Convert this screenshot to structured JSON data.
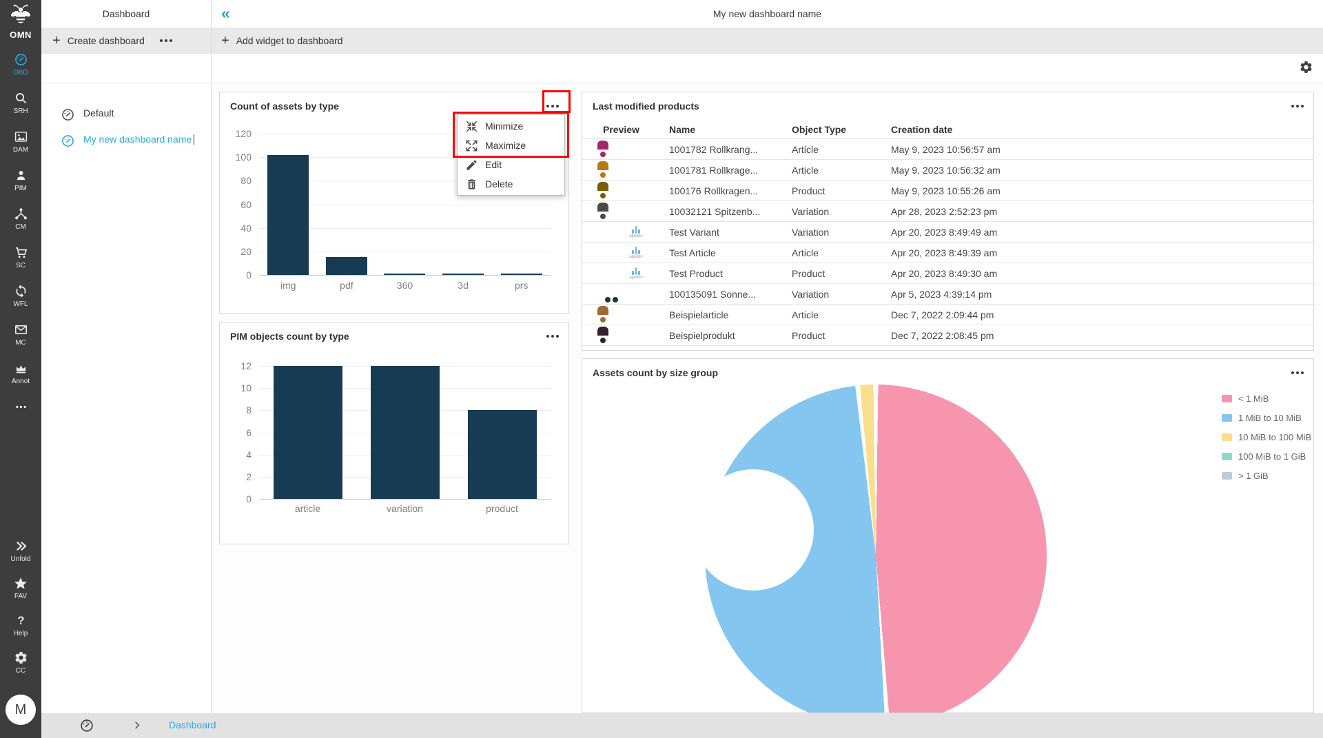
{
  "app": {
    "logo_text": "OMN"
  },
  "sidebar": {
    "items": [
      {
        "id": "dbd",
        "label": "DBD",
        "icon": "gauge-icon",
        "active": true
      },
      {
        "id": "srh",
        "label": "SRH",
        "icon": "search-icon",
        "active": false
      },
      {
        "id": "dam",
        "label": "DAM",
        "icon": "image-icon",
        "active": false
      },
      {
        "id": "pim",
        "label": "PIM",
        "icon": "person-icon",
        "active": false
      },
      {
        "id": "cm",
        "label": "CM",
        "icon": "share-icon",
        "active": false
      },
      {
        "id": "sc",
        "label": "SC",
        "icon": "cart-icon",
        "active": false
      },
      {
        "id": "wfl",
        "label": "WFL",
        "icon": "sync-icon",
        "active": false
      },
      {
        "id": "mc",
        "label": "MC",
        "icon": "mail-icon",
        "active": false
      },
      {
        "id": "annot",
        "label": "Annot",
        "icon": "crown-icon",
        "active": false
      },
      {
        "id": "more",
        "label": "",
        "icon": "dots-icon",
        "active": false
      }
    ],
    "bottom_items": [
      {
        "id": "unfold",
        "label": "Unfold",
        "icon": "chevrons-right-icon"
      },
      {
        "id": "fav",
        "label": "FAV",
        "icon": "star-icon"
      },
      {
        "id": "help",
        "label": "Help",
        "icon": "question-icon"
      },
      {
        "id": "cc",
        "label": "CC",
        "icon": "gear-icon"
      }
    ],
    "avatar_initial": "M"
  },
  "dashboard_panel": {
    "title": "Dashboard",
    "create_button": "Create dashboard",
    "list": [
      {
        "label": "Default",
        "active": false,
        "editing": false
      },
      {
        "label": "My new dashboard name",
        "active": true,
        "editing": true
      }
    ]
  },
  "topbar": {
    "title": "My new dashboard name",
    "collapse_glyph": "«",
    "add_widget_button": "Add widget to dashboard"
  },
  "context_menu": {
    "items": [
      {
        "label": "Minimize",
        "icon": "minimize-icon",
        "highlighted": true
      },
      {
        "label": "Maximize",
        "icon": "maximize-icon",
        "highlighted": true
      },
      {
        "label": "Edit",
        "icon": "pencil-icon",
        "highlighted": false
      },
      {
        "label": "Delete",
        "icon": "trash-icon",
        "highlighted": false
      }
    ],
    "annotation_color": "#ff0000"
  },
  "widgets": {
    "assets_by_type": {
      "title": "Count of assets by type"
    },
    "pim_by_type": {
      "title": "PIM objects count by type"
    },
    "last_modified": {
      "title": "Last modified products",
      "columns": [
        "Preview",
        "Name",
        "Object Type",
        "Creation date"
      ],
      "rows": [
        {
          "name": "1001782 Rollkrang...",
          "object_type": "Article",
          "creation_date": "May 9, 2023 10:56:57 am",
          "thumb": {
            "kind": "photo",
            "bg": "#ea5aa5",
            "fg": "#a6256d"
          }
        },
        {
          "name": "1001781 Rollkrage...",
          "object_type": "Article",
          "creation_date": "May 9, 2023 10:56:32 am",
          "thumb": {
            "kind": "photo",
            "bg": "#edb23a",
            "fg": "#b57a14"
          }
        },
        {
          "name": "100176 Rollkragen...",
          "object_type": "Product",
          "creation_date": "May 9, 2023 10:55:26 am",
          "thumb": {
            "kind": "photo",
            "bg": "#f2c21c",
            "fg": "#7a5c10"
          }
        },
        {
          "name": "10032121 Spitzenb...",
          "object_type": "Variation",
          "creation_date": "Apr 28, 2023 2:52:23 pm",
          "thumb": {
            "kind": "photo",
            "bg": "#e9c49c",
            "fg": "#4a4a4a"
          }
        },
        {
          "name": "Test Variant",
          "object_type": "Variation",
          "creation_date": "Apr 20, 2023 8:49:49 am",
          "thumb": {
            "kind": "logo",
            "text": "apollon",
            "color": "#6fb7e0"
          }
        },
        {
          "name": "Test Article",
          "object_type": "Article",
          "creation_date": "Apr 20, 2023 8:49:39 am",
          "thumb": {
            "kind": "logo",
            "text": "apollon",
            "color": "#6fb7e0"
          }
        },
        {
          "name": "Test Product",
          "object_type": "Product",
          "creation_date": "Apr 20, 2023 8:49:30 am",
          "thumb": {
            "kind": "logo",
            "text": "apollon",
            "color": "#6fb7e0"
          }
        },
        {
          "name": "100135091 Sonne...",
          "object_type": "Variation",
          "creation_date": "Apr 5, 2023 4:39:14 pm",
          "thumb": {
            "kind": "glasses",
            "bg": "#b9b9c2",
            "fg": "#20333d"
          }
        },
        {
          "name": "Beispielarticle",
          "object_type": "Article",
          "creation_date": "Dec 7, 2022 2:09:44 pm",
          "thumb": {
            "kind": "photo",
            "bg": "#e5c63f",
            "fg": "#9c6b33"
          }
        },
        {
          "name": "Beispielprodukt",
          "object_type": "Product",
          "creation_date": "Dec 7, 2022 2:08:45 pm",
          "thumb": {
            "kind": "photo",
            "bg": "#d893b4",
            "fg": "#33202b"
          }
        }
      ]
    },
    "assets_by_size": {
      "title": "Assets count by size group"
    }
  },
  "chart_data": [
    {
      "id": "assets_by_type",
      "type": "bar",
      "title": "Count of assets by type",
      "categories": [
        "img",
        "pdf",
        "360",
        "3d",
        "prs"
      ],
      "values": [
        102,
        15,
        1,
        1,
        1
      ],
      "xlabel": "",
      "ylabel": "",
      "ylim": [
        0,
        120
      ],
      "ytick_step": 20,
      "grid": true,
      "bar_color": "#173b52"
    },
    {
      "id": "pim_by_type",
      "type": "bar",
      "title": "PIM objects count by type",
      "categories": [
        "article",
        "variation",
        "product"
      ],
      "values": [
        12,
        12,
        8
      ],
      "xlabel": "",
      "ylabel": "",
      "ylim": [
        0,
        12
      ],
      "ytick_step": 2,
      "grid": true,
      "bar_color": "#173b52"
    },
    {
      "id": "assets_by_size",
      "type": "donut",
      "title": "Assets count by size group",
      "legend_position": "right",
      "slices": [
        {
          "label": "< 1 MiB",
          "percent": 48.9,
          "color": "#f795af"
        },
        {
          "label": "1 MiB to 10 MiB",
          "percent": 49.4,
          "color": "#85c6f0"
        },
        {
          "label": "10 MiB to 100 MiB",
          "percent": 1.7,
          "color": "#fade8c"
        },
        {
          "label": "100 MiB to 1 GiB",
          "percent": 0,
          "color": "#90d9c8"
        },
        {
          "label": "> 1 GiB",
          "percent": 0,
          "color": "#bacdd6"
        }
      ]
    }
  ],
  "breadcrumb": {
    "label": "Dashboard"
  },
  "colors": {
    "accent_blue": "#29abe2",
    "sidebar_bg": "#3d3d3d",
    "bar_color": "#173b52",
    "annotation_red": "#ff0000",
    "gray_bar": "#e9e9e9",
    "bottom_bar": "#e2e2e2"
  }
}
